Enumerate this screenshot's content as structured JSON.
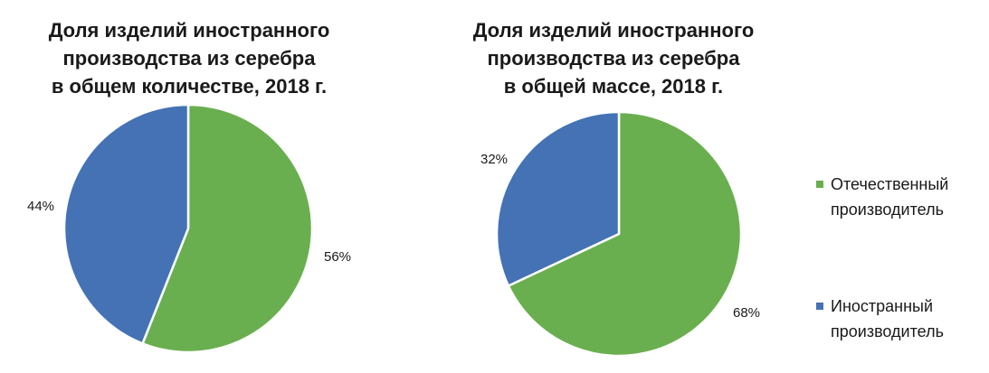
{
  "chart_data": [
    {
      "type": "pie",
      "title_lines": [
        "Доля изделий иностранного",
        "производства из серебра",
        "в общем количестве, 2018 г."
      ],
      "categories": [
        "Отечественный производитель",
        "Иностранный производитель"
      ],
      "values": [
        56,
        44
      ],
      "labels": [
        "56%",
        "44%"
      ],
      "colors": [
        "#6aaf4f",
        "#4472b4"
      ],
      "start_angle_deg": 0,
      "direction": "clockwise"
    },
    {
      "type": "pie",
      "title_lines": [
        "Доля изделий иностранного",
        "производства из серебра",
        "в общей массе, 2018 г."
      ],
      "categories": [
        "Отечественный производитель",
        "Иностранный производитель"
      ],
      "values": [
        68,
        32
      ],
      "labels": [
        "68%",
        "32%"
      ],
      "colors": [
        "#6aaf4f",
        "#4472b4"
      ],
      "start_angle_deg": 0,
      "direction": "clockwise"
    }
  ],
  "legend": {
    "placement": "right",
    "items": [
      {
        "label_lines": [
          "Отечественный",
          "производитель"
        ],
        "color": "#6aaf4f"
      },
      {
        "label_lines": [
          "Иностранный",
          "производитель"
        ],
        "color": "#4472b4"
      }
    ]
  }
}
